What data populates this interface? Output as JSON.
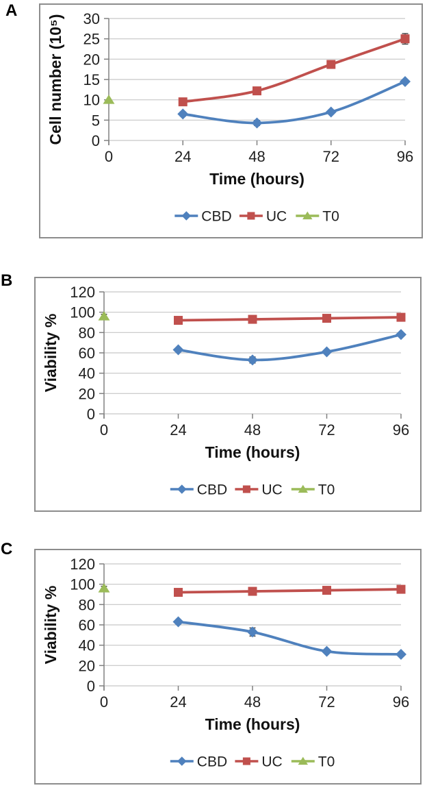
{
  "style": {
    "background": "#FFFFFF",
    "grid_color": "#C6C6C6",
    "axis_color": "#808080",
    "border_color": "#8C8C8C",
    "text_color": "#1F1F1F",
    "error_bar_color": "#404040",
    "cbd_color": "#4F81BD",
    "uc_color": "#C0504D",
    "t0_color": "#9BBB59"
  },
  "chart_data": [
    {
      "panel_label": "A",
      "type": "line",
      "title": "",
      "xlabel": "Time (hours)",
      "ylabel": "Cell number (10⁵)",
      "xlim": [
        0,
        96
      ],
      "ylim": [
        0,
        30
      ],
      "xticks": [
        0,
        24,
        48,
        72,
        96
      ],
      "yticks": [
        0,
        5,
        10,
        15,
        20,
        25,
        30
      ],
      "grid": "horizontal",
      "legend_position": "bottom",
      "legend": [
        "CBD",
        "UC",
        "T0"
      ],
      "series": [
        {
          "name": "CBD",
          "color": "#4F81BD",
          "marker": "diamond",
          "x": [
            24,
            48,
            72,
            96
          ],
          "y": [
            6.5,
            4.3,
            7.0,
            14.5
          ],
          "yerr": [
            0.5,
            0.6,
            0,
            0
          ]
        },
        {
          "name": "UC",
          "color": "#C0504D",
          "marker": "square",
          "x": [
            24,
            48,
            72,
            96
          ],
          "y": [
            9.5,
            12.2,
            18.7,
            25.0
          ],
          "yerr": [
            0,
            0,
            0,
            1.3
          ]
        },
        {
          "name": "T0",
          "color": "#9BBB59",
          "marker": "triangle",
          "x": [
            0
          ],
          "y": [
            10.0
          ],
          "yerr": [
            0
          ]
        }
      ]
    },
    {
      "panel_label": "B",
      "type": "line",
      "title": "",
      "xlabel": "Time (hours)",
      "ylabel": "Viability %",
      "xlim": [
        0,
        96
      ],
      "ylim": [
        0,
        120
      ],
      "xticks": [
        0,
        24,
        48,
        72,
        96
      ],
      "yticks": [
        0,
        20,
        40,
        60,
        80,
        100,
        120
      ],
      "grid": "horizontal",
      "legend_position": "bottom",
      "legend": [
        "CBD",
        "UC",
        "T0"
      ],
      "series": [
        {
          "name": "CBD",
          "color": "#4F81BD",
          "marker": "diamond",
          "x": [
            24,
            48,
            72,
            96
          ],
          "y": [
            63,
            53,
            61,
            78
          ],
          "yerr": [
            0,
            3,
            0,
            0
          ]
        },
        {
          "name": "UC",
          "color": "#C0504D",
          "marker": "square",
          "x": [
            24,
            48,
            72,
            96
          ],
          "y": [
            92,
            93,
            94,
            95
          ],
          "yerr": [
            0,
            3,
            0,
            0
          ]
        },
        {
          "name": "T0",
          "color": "#9BBB59",
          "marker": "triangle",
          "x": [
            0
          ],
          "y": [
            96
          ],
          "yerr": [
            2
          ]
        }
      ]
    },
    {
      "panel_label": "C",
      "type": "line",
      "title": "",
      "xlabel": "Time (hours)",
      "ylabel": "Viability %",
      "xlim": [
        0,
        96
      ],
      "ylim": [
        0,
        120
      ],
      "xticks": [
        0,
        24,
        48,
        72,
        96
      ],
      "yticks": [
        0,
        20,
        40,
        60,
        80,
        100,
        120
      ],
      "grid": "horizontal",
      "legend_position": "bottom",
      "legend": [
        "CBD",
        "UC",
        "T0"
      ],
      "series": [
        {
          "name": "CBD",
          "color": "#4F81BD",
          "marker": "diamond",
          "x": [
            24,
            48,
            72,
            96
          ],
          "y": [
            63,
            53,
            34,
            31
          ],
          "yerr": [
            2,
            4,
            1.5,
            1.5
          ]
        },
        {
          "name": "UC",
          "color": "#C0504D",
          "marker": "square",
          "x": [
            24,
            48,
            72,
            96
          ],
          "y": [
            92,
            93,
            94,
            95
          ],
          "yerr": [
            0,
            0,
            0,
            0
          ]
        },
        {
          "name": "T0",
          "color": "#9BBB59",
          "marker": "triangle",
          "x": [
            0
          ],
          "y": [
            96
          ],
          "yerr": [
            2
          ]
        }
      ]
    }
  ]
}
